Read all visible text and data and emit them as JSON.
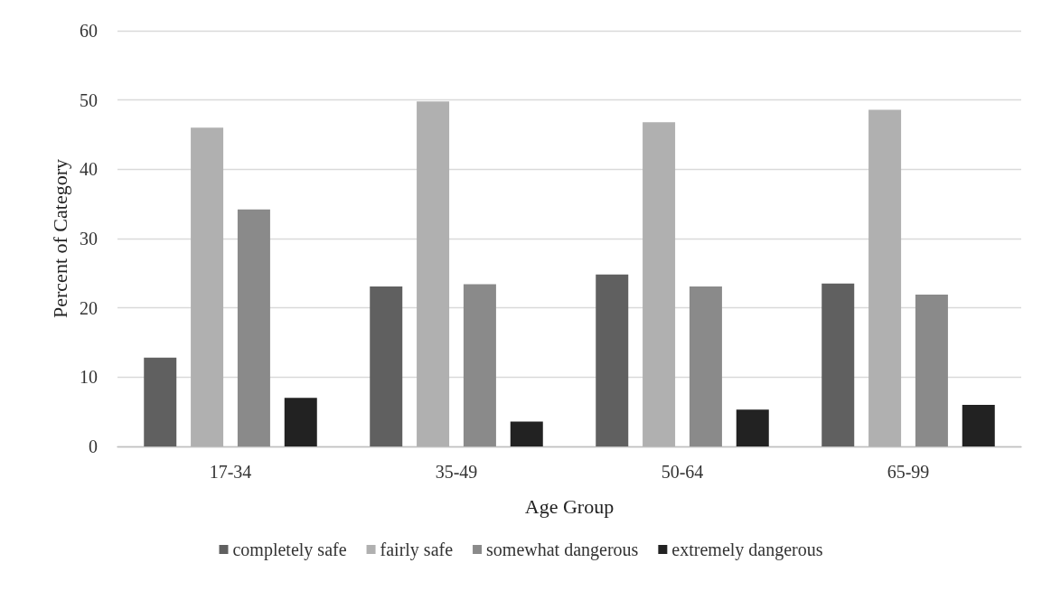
{
  "chart_data": {
    "type": "bar",
    "xlabel": "Age Group",
    "ylabel": "Percent of Category",
    "categories": [
      "17-34",
      "35-49",
      "50-64",
      "65-99"
    ],
    "series": [
      {
        "name": "completely safe",
        "color": "#606060",
        "values": [
          12.8,
          23.1,
          24.8,
          23.5
        ]
      },
      {
        "name": "fairly safe",
        "color": "#b0b0b0",
        "values": [
          46.0,
          49.8,
          46.8,
          48.6
        ]
      },
      {
        "name": "somewhat dangerous",
        "color": "#8a8a8a",
        "values": [
          34.2,
          23.4,
          23.1,
          21.9
        ]
      },
      {
        "name": "extremely dangerous",
        "color": "#222222",
        "values": [
          7.0,
          3.6,
          5.3,
          6.0
        ]
      }
    ],
    "ylim": [
      0,
      60
    ],
    "yticks": [
      0,
      10,
      20,
      30,
      40,
      50,
      60
    ],
    "grid": "y",
    "legend": "bottom"
  }
}
